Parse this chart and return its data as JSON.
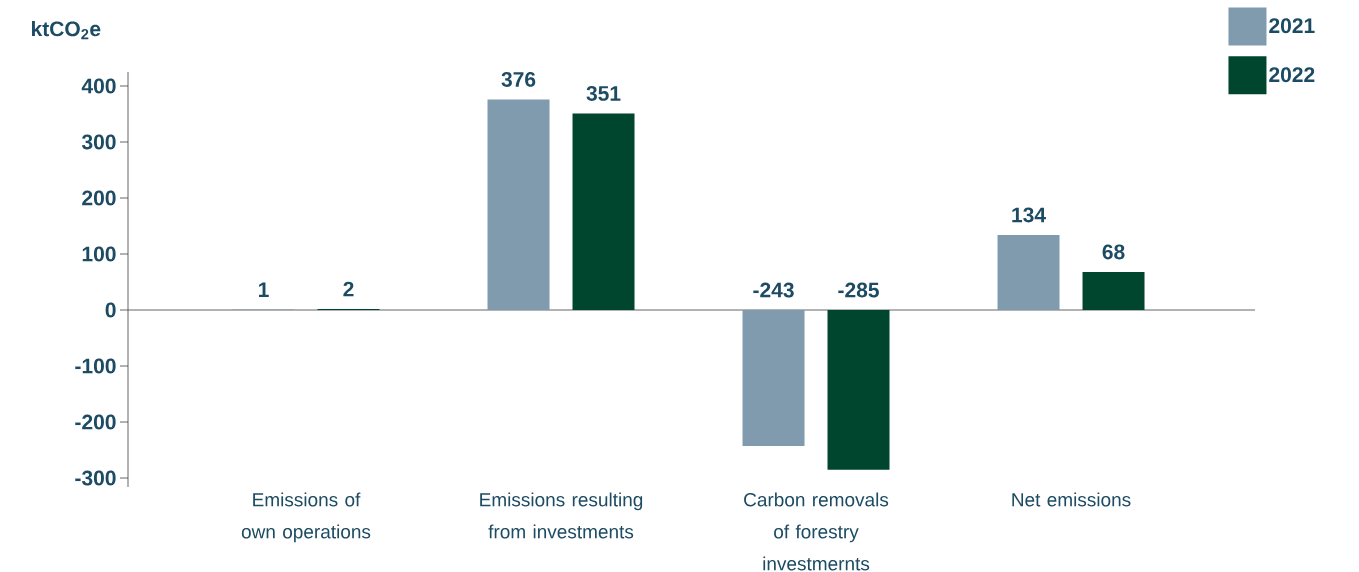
{
  "chart_data": {
    "type": "bar",
    "ylabel": "ktCO$_{2}$e",
    "categories": [
      "Emissions of own operations",
      "Emissions resulting from investments",
      "Carbon removals of forestry investmernts",
      "Net emissions"
    ],
    "series": [
      {
        "name": "2021",
        "color": "#7f9bad",
        "values": [
          1,
          376,
          -243,
          134
        ]
      },
      {
        "name": "2022",
        "color": "#00462f",
        "values": [
          2,
          351,
          -285,
          68
        ]
      }
    ],
    "ylim": [
      -316,
      425
    ],
    "yticks": [
      -300,
      -200,
      -100,
      0,
      100,
      200,
      300,
      400
    ],
    "data_labels": true,
    "legend": "top right"
  }
}
